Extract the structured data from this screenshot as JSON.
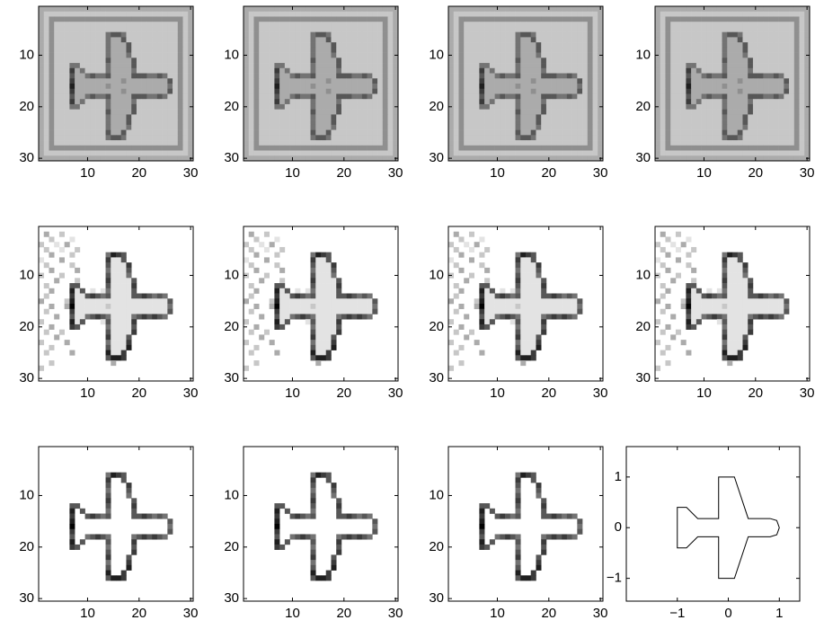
{
  "chart_data": [
    {
      "type": "heatmap",
      "xlim": [
        0.5,
        30.5
      ],
      "ylim": [
        30.5,
        0.5
      ],
      "xticks": [
        10,
        20,
        30
      ],
      "yticks": [
        10,
        20,
        30
      ],
      "rows": [
        "333333333333333333333333333333",
        "322222222222222222222222222223",
        "324444444444444444444444444423",
        "324222222222222222222222222423",
        "324222222222222222222222222423",
        "324222222222256652222222222423",
        "324222222222253362222222222423",
        "324222222222253336222222222423",
        "324222222222253336222222222423",
        "324222222222253335222222222423",
        "324222222222263333622222222423",
        "324222552222253333622222222423",
        "324222735222253333522222222423",
        "324222633565563333666556522423",
        "324222733333333343333333362423",
        "324222833333343333333333352423",
        "324222733333333343333333362423",
        "324222633565563333666556522423",
        "324222735222253333522222222423",
        "324222552222253333622222222423",
        "324222222222263333622222222423",
        "324222222222253336222222222423",
        "324222222222253336222222222423",
        "324222222222253335222222222423",
        "324222222222263362222222222423",
        "324222222222256652222222222423",
        "324222222222222222222222222423",
        "324444444444444444444444444423",
        "322222222222222222222222222223",
        "333333333333333333333333333333"
      ]
    },
    {
      "type": "heatmap",
      "xlim": [
        0.5,
        30.5
      ],
      "ylim": [
        30.5,
        0.5
      ],
      "xticks": [
        10,
        20,
        30
      ],
      "yticks": [
        10,
        20,
        30
      ],
      "rows": [
        "333333333333333333333333333333",
        "322222222222222222222222222223",
        "324444444444444444444444444423",
        "324222222222222222222222222423",
        "324222222222222222222222222423",
        "324222222222256652222222222423",
        "324222222222253362222222222423",
        "324222222222253336222222222423",
        "324222222222253336222222222423",
        "324222222222253335222222222423",
        "324222222222263333622222222423",
        "324222552222253333622222222423",
        "324222735222253333522222222423",
        "324222633565563333666556522423",
        "324222733333333343333333362423",
        "324222833333343333333333352423",
        "324222733333333343333333362423",
        "324222633565563333666556522423",
        "324222735222253333522222222423",
        "324222552222253333622222222423",
        "324222222222263333622222222423",
        "324222222222253336222222222423",
        "324222222222253336222222222423",
        "324222222222253335222222222423",
        "324222222222263362222222222423",
        "324222222222256652222222222423",
        "324222222222222222222222222423",
        "324444444444444444444444444423",
        "322222222222222222222222222223",
        "333333333333333333333333333333"
      ]
    },
    {
      "type": "heatmap",
      "xlim": [
        0.5,
        30.5
      ],
      "ylim": [
        30.5,
        0.5
      ],
      "xticks": [
        10,
        20,
        30
      ],
      "yticks": [
        10,
        20,
        30
      ],
      "rows": [
        "333333333333333333333333333333",
        "322222222222222222222222222223",
        "324444444444444444444444444423",
        "324222222222222222222222222423",
        "324222222222222222222222222423",
        "324222222222256652222222222423",
        "324222222222253362222222222423",
        "324222222222253336222222222423",
        "324222222222253336222222222423",
        "324222222222253335222222222423",
        "324222222222263333622222222423",
        "324222552222253333622222222423",
        "324222735222253333522222222423",
        "324222633565563333666556522423",
        "324222733333333343333333362423",
        "324222833333343333333333352423",
        "324222733333333343333333362423",
        "324222633565563333666556522423",
        "324222735222253333522222222423",
        "324222552222253333622222222423",
        "324222222222263333622222222423",
        "324222222222253336222222222423",
        "324222222222253336222222222423",
        "324222222222253335222222222423",
        "324222222222263362222222222423",
        "324222222222256652222222222423",
        "324222222222222222222222222423",
        "324444444444444444444444444423",
        "322222222222222222222222222223",
        "333333333333333333333333333333"
      ]
    },
    {
      "type": "heatmap",
      "xlim": [
        0.5,
        30.5
      ],
      "ylim": [
        30.5,
        0.5
      ],
      "xticks": [
        10,
        20,
        30
      ],
      "yticks": [
        10,
        20,
        30
      ],
      "rows": [
        "333333333333333333333333333333",
        "322222222222222222222222222223",
        "324444444444444444444444444423",
        "324222222222222222222222222423",
        "324222222222222222222222222423",
        "324222222222256652222222222423",
        "324222222222253362222222222423",
        "324222222222253336222222222423",
        "324222222222253336222222222423",
        "324222222222253335222222222423",
        "324222222222263333622222222423",
        "324222552222253333622222222423",
        "324222735222253333522222222423",
        "324222633565563333666556522423",
        "324222733333333343333333362423",
        "324222833333343333333333352423",
        "324222733333333343333333362423",
        "324222633565563333666556522423",
        "324222735222253333522222222423",
        "324222552222253333622222222423",
        "324222222222263333622222222423",
        "324222222222253336222222222423",
        "324222222222253336222222222423",
        "324222222222253335222222222423",
        "324222222222263362222222222423",
        "324222222222256652222222222423",
        "324222222222222222222222222423",
        "324444444444444444444444444423",
        "322222222222222222222222222223",
        "333333333333333333333333333333"
      ]
    },
    {
      "type": "heatmap",
      "xlim": [
        0.5,
        30.5
      ],
      "ylim": [
        30.5,
        0.5
      ],
      "xticks": [
        10,
        20,
        30
      ],
      "yticks": [
        10,
        20,
        30
      ],
      "rows": [
        "000000000000000000000000000000",
        "030020000000000000000000000000",
        "002000100000000000000000000000",
        "200103000000000000000000000000",
        "020010020000000000000000000000",
        "003000200000058760000000000000",
        "100030000000071160000000000000",
        "020000200000061117000000000000",
        "003000030000051116000000000000",
        "200020000000061115000000000000",
        "000300020000071111600000000000",
        "020000660000061111700000000000",
        "003000816010151111600000000000",
        "020000711676561111667656500000",
        "300002811111111111111111160000",
        "003003911111121111111111150000",
        "020000711111111111111111160000",
        "000300611567651111567676500000",
        "200000816000161111700000000000",
        "003000760000051111600000000000",
        "020020000000061111700000000000",
        "000300000000071116000000000000",
        "200003000000051117000000000000",
        "002000000000061118000000000000",
        "020000300000081170000000000000",
        "000000000000068870000000000000",
        "002000000000003000000000000000",
        "200000000000000000000000000000",
        "000000000000000000000000000000",
        "000000000000000000000000000000"
      ]
    },
    {
      "type": "heatmap",
      "xlim": [
        0.5,
        30.5
      ],
      "ylim": [
        30.5,
        0.5
      ],
      "xticks": [
        10,
        20,
        30
      ],
      "yticks": [
        10,
        20,
        30
      ],
      "rows": [
        "000000000000000000000000000000",
        "030020000000000000000000000000",
        "002000100000000000000000000000",
        "200103000000000000000000000000",
        "020010020000000000000000000000",
        "003000200000058760000000000000",
        "100030000000071160000000000000",
        "020000200000061117000000000000",
        "003000030000051116000000000000",
        "200020000000061115000000000000",
        "000300020000071111600000000000",
        "020000660000061111700000000000",
        "003000816010151111600000000000",
        "020000711676561111667656500000",
        "300002811111111111111111160000",
        "003003911111121111111111150000",
        "020000711111111111111111160000",
        "000300611567651111567676500000",
        "200000816000161111700000000000",
        "003000760000051111600000000000",
        "020020000000061111700000000000",
        "000300000000071116000000000000",
        "200003000000051117000000000000",
        "002000000000061118000000000000",
        "020000300000081170000000000000",
        "000000000000068870000000000000",
        "002000000000003000000000000000",
        "200000000000000000000000000000",
        "000000000000000000000000000000",
        "000000000000000000000000000000"
      ]
    },
    {
      "type": "heatmap",
      "xlim": [
        0.5,
        30.5
      ],
      "ylim": [
        30.5,
        0.5
      ],
      "xticks": [
        10,
        20,
        30
      ],
      "yticks": [
        10,
        20,
        30
      ],
      "rows": [
        "000000000000000000000000000000",
        "030020000000000000000000000000",
        "002000100000000000000000000000",
        "200103000000000000000000000000",
        "020010020000000000000000000000",
        "003000200000058760000000000000",
        "100030000000071160000000000000",
        "020000200000061117000000000000",
        "003000030000051116000000000000",
        "200020000000061115000000000000",
        "000300020000071111600000000000",
        "020000660000061111700000000000",
        "003000816010151111600000000000",
        "020000711676561111667656500000",
        "300002811111111111111111160000",
        "003003911111121111111111150000",
        "020000711111111111111111160000",
        "000300611567651111567676500000",
        "200000816000161111700000000000",
        "003000760000051111600000000000",
        "020020000000061111700000000000",
        "000300000000071116000000000000",
        "200003000000051117000000000000",
        "002000000000061118000000000000",
        "020000300000081170000000000000",
        "000000000000068870000000000000",
        "002000000000003000000000000000",
        "200000000000000000000000000000",
        "000000000000000000000000000000",
        "000000000000000000000000000000"
      ]
    },
    {
      "type": "heatmap",
      "xlim": [
        0.5,
        30.5
      ],
      "ylim": [
        30.5,
        0.5
      ],
      "xticks": [
        10,
        20,
        30
      ],
      "yticks": [
        10,
        20,
        30
      ],
      "rows": [
        "000000000000000000000000000000",
        "030020000000000000000000000000",
        "002000100000000000000000000000",
        "200103000000000000000000000000",
        "020010020000000000000000000000",
        "003000200000058760000000000000",
        "100030000000071160000000000000",
        "020000200000061117000000000000",
        "003000030000051116000000000000",
        "200020000000061115000000000000",
        "000300020000071111600000000000",
        "020000660000061111700000000000",
        "003000816010151111600000000000",
        "020000711676561111667656500000",
        "300002811111111111111111160000",
        "003003911111121111111111150000",
        "020000711111111111111111160000",
        "000300611567651111567676500000",
        "200000816000161111700000000000",
        "003000760000051111600000000000",
        "020020000000061111700000000000",
        "000300000000071116000000000000",
        "200003000000051117000000000000",
        "002000000000061118000000000000",
        "020000300000081170000000000000",
        "000000000000068870000000000000",
        "002000000000003000000000000000",
        "200000000000000000000000000000",
        "000000000000000000000000000000",
        "000000000000000000000000000000"
      ]
    },
    {
      "type": "heatmap",
      "xlim": [
        0.5,
        30.5
      ],
      "ylim": [
        30.5,
        0.5
      ],
      "xticks": [
        10,
        20,
        30
      ],
      "yticks": [
        10,
        20,
        30
      ],
      "rows": [
        "000000000000000000000000000000",
        "000000000000000000000000000000",
        "000000000000000000000000000000",
        "000000000000000000000000000000",
        "000000000000000000000000000000",
        "000000000000058760000000000000",
        "000000000000070060000000000000",
        "000000000000060007000000000000",
        "000000000000050006000000000000",
        "000000000000060005000000000000",
        "000000000000070000600000000000",
        "000000660000060000700000000000",
        "000000806000050000600000000000",
        "000000700676560000667656500000",
        "000000800000000000000000060000",
        "000000900000000000000000050000",
        "000000700000000000000000060000",
        "000000600567650000567676500000",
        "000000806000060000700000000000",
        "000000760000050000600000000000",
        "000000000000060000700000000000",
        "000000000000070006000000000000",
        "000000000000050007000000000000",
        "000000000000060008000000000000",
        "000000000000080070000000000000",
        "000000000000068870000000000000",
        "000000000000000000000000000000",
        "000000000000000000000000000000",
        "000000000000000000000000000000",
        "000000000000000000000000000000"
      ]
    },
    {
      "type": "heatmap",
      "xlim": [
        0.5,
        30.5
      ],
      "ylim": [
        30.5,
        0.5
      ],
      "xticks": [
        10,
        20,
        30
      ],
      "yticks": [
        10,
        20,
        30
      ],
      "rows": [
        "000000000000000000000000000000",
        "000000000000000000000000000000",
        "000000000000000000000000000000",
        "000000000000000000000000000000",
        "000000000000000000000000000000",
        "000000000000058760000000000000",
        "000000000000070060000000000000",
        "000000000000060007000000000000",
        "000000000000050006000000000000",
        "000000000000060005000000000000",
        "000000000000070000600000000000",
        "000000660000060000700000000000",
        "000000806000050000600000000000",
        "000000700676560000667656500000",
        "000000800000000000000000060000",
        "000000900000000000000000050000",
        "000000700000000000000000060000",
        "000000600567650000567676500000",
        "000000806000060000700000000000",
        "000000760000050000600000000000",
        "000000000000060000700000000000",
        "000000000000070006000000000000",
        "000000000000050007000000000000",
        "000000000000060008000000000000",
        "000000000000080070000000000000",
        "000000000000068870000000000000",
        "000000000000000000000000000000",
        "000000000000000000000000000000",
        "000000000000000000000000000000",
        "000000000000000000000000000000"
      ]
    },
    {
      "type": "heatmap",
      "xlim": [
        0.5,
        30.5
      ],
      "ylim": [
        30.5,
        0.5
      ],
      "xticks": [
        10,
        20,
        30
      ],
      "yticks": [
        10,
        20,
        30
      ],
      "rows": [
        "000000000000000000000000000000",
        "000000000000000000000000000000",
        "000000000000000000000000000000",
        "000000000000000000000000000000",
        "000000000000000000000000000000",
        "000000000000058760000000000000",
        "000000000000070060000000000000",
        "000000000000060007000000000000",
        "000000000000050006000000000000",
        "000000000000060005000000000000",
        "000000000000070000600000000000",
        "000000660000060000700000000000",
        "000000806000050000600000000000",
        "000000700676560000667656500000",
        "000000800000000000000000060000",
        "000000900000000000000000050000",
        "000000700000000000000000060000",
        "000000600567650000567676500000",
        "000000806000060000700000000000",
        "000000760000050000600000000000",
        "000000000000060000700000000000",
        "000000000000070006000000000000",
        "000000000000050007000000000000",
        "000000000000060008000000000000",
        "000000000000080070000000000000",
        "000000000000068870000000000000",
        "000000000000000000000000000000",
        "000000000000000000000000000000",
        "000000000000000000000000000000",
        "000000000000000000000000000000"
      ]
    },
    {
      "type": "line",
      "xlim": [
        -2,
        1.4
      ],
      "ylim": [
        -1.45,
        1.6
      ],
      "color": "#000000",
      "xticks": [
        {
          "value": -1,
          "label": "−1"
        },
        0,
        1
      ],
      "yticks": [
        {
          "value": -1,
          "label": "−1"
        },
        0,
        1
      ],
      "x": [
        0.82,
        0.95,
        1,
        0.95,
        0.82,
        0.39,
        0.12,
        -0.19,
        -0.19,
        -0.6,
        -0.82,
        -1,
        -1,
        -0.82,
        -0.6,
        -0.19,
        -0.19,
        0.12,
        0.39,
        0.82
      ],
      "y": [
        0.18,
        0.14,
        0,
        -0.14,
        -0.18,
        -0.18,
        -1,
        -1,
        -0.18,
        -0.18,
        -0.4,
        -0.4,
        0.4,
        0.4,
        0.18,
        0.18,
        1,
        1,
        0.18,
        0.18
      ]
    }
  ]
}
